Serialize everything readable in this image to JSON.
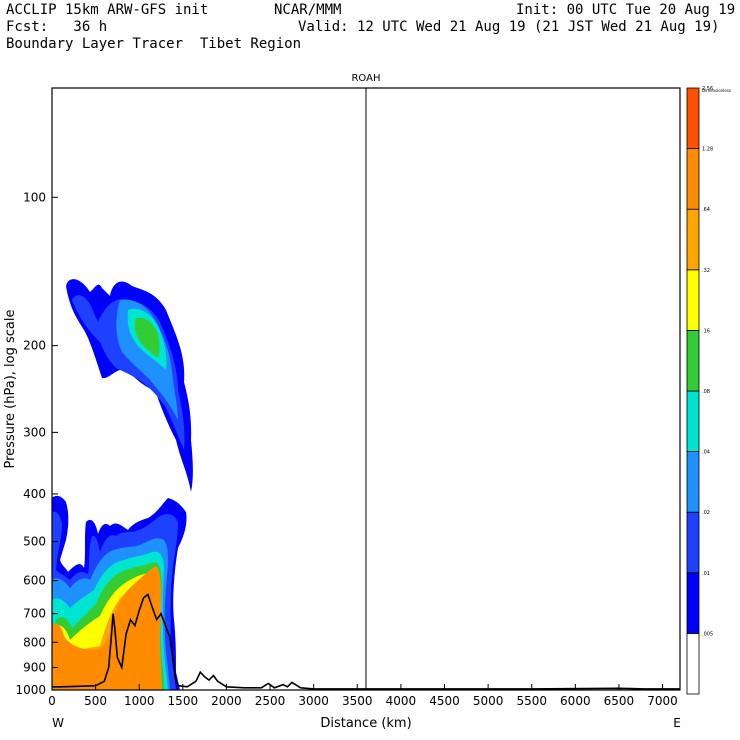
{
  "header": {
    "line1_left": "ACCLIP 15km ARW-GFS init",
    "line1_mid": "NCAR/MMM",
    "line1_right": "Init: 00 UTC Tue 20 Aug 19",
    "line2_left": "Fcst:   36 h",
    "line2_right": "Valid: 12 UTC Wed 21 Aug 19 (21 JST Wed 21 Aug 19)",
    "line3_left": "Boundary Layer Tracer  Tibet Region"
  },
  "chart_data": {
    "type": "contour-filled cross-section",
    "title": "ROAH",
    "xlabel": "Distance (km)",
    "ylabel": "Pressure (hPa), log scale",
    "x_start_label": "W",
    "x_end_label": "E",
    "xlim": [
      0,
      7200
    ],
    "ylim": [
      1000,
      60
    ],
    "y_scale": "log",
    "x_ticks": [
      0,
      500,
      1000,
      1500,
      2000,
      2500,
      3000,
      3500,
      4000,
      4500,
      5000,
      5500,
      6000,
      6500,
      7000
    ],
    "x_tick_labels": [
      "0",
      "500",
      "1000",
      "1500",
      "2000",
      "2500",
      "3000",
      "3500",
      "4000",
      "4500",
      "5000",
      "5500",
      "6000",
      "6500",
      "7000"
    ],
    "y_ticks": [
      100,
      200,
      300,
      400,
      500,
      600,
      700,
      800,
      900,
      1000
    ],
    "y_tick_labels": [
      "100",
      "200",
      "300",
      "400",
      "500",
      "600",
      "700",
      "800",
      "900",
      "1000"
    ],
    "vertical_marker_x": 3600,
    "colorbar": {
      "title": "Dimensionless",
      "levels": [
        ".005",
        ".01",
        ".02",
        ".04",
        ".08",
        ".16",
        ".32",
        ".64",
        "1.28",
        "2.56"
      ],
      "colors": [
        "#ffffff",
        "#0000ff",
        "#1e40ff",
        "#1e90ff",
        "#00e5d0",
        "#33cc33",
        "#ffff00",
        "#ffa500",
        "#ff8c00",
        "#ff5000"
      ]
    },
    "terrain_km_hpa": [
      [
        0,
        985
      ],
      [
        100,
        985
      ],
      [
        300,
        983
      ],
      [
        500,
        980
      ],
      [
        600,
        960
      ],
      [
        650,
        900
      ],
      [
        680,
        780
      ],
      [
        700,
        700
      ],
      [
        720,
        750
      ],
      [
        750,
        860
      ],
      [
        800,
        900
      ],
      [
        850,
        770
      ],
      [
        900,
        720
      ],
      [
        950,
        740
      ],
      [
        1000,
        690
      ],
      [
        1050,
        650
      ],
      [
        1100,
        640
      ],
      [
        1150,
        680
      ],
      [
        1200,
        720
      ],
      [
        1250,
        700
      ],
      [
        1300,
        740
      ],
      [
        1350,
        780
      ],
      [
        1400,
        900
      ],
      [
        1420,
        960
      ],
      [
        1450,
        980
      ],
      [
        1550,
        985
      ],
      [
        1650,
        960
      ],
      [
        1700,
        920
      ],
      [
        1750,
        940
      ],
      [
        1800,
        955
      ],
      [
        1850,
        935
      ],
      [
        1900,
        960
      ],
      [
        2000,
        985
      ],
      [
        2200,
        990
      ],
      [
        2400,
        990
      ],
      [
        2480,
        970
      ],
      [
        2550,
        990
      ],
      [
        2650,
        975
      ],
      [
        2700,
        985
      ],
      [
        2750,
        965
      ],
      [
        2850,
        990
      ],
      [
        3000,
        995
      ],
      [
        4000,
        995
      ],
      [
        5500,
        995
      ],
      [
        6500,
        992
      ],
      [
        6800,
        995
      ],
      [
        7200,
        995
      ]
    ]
  }
}
